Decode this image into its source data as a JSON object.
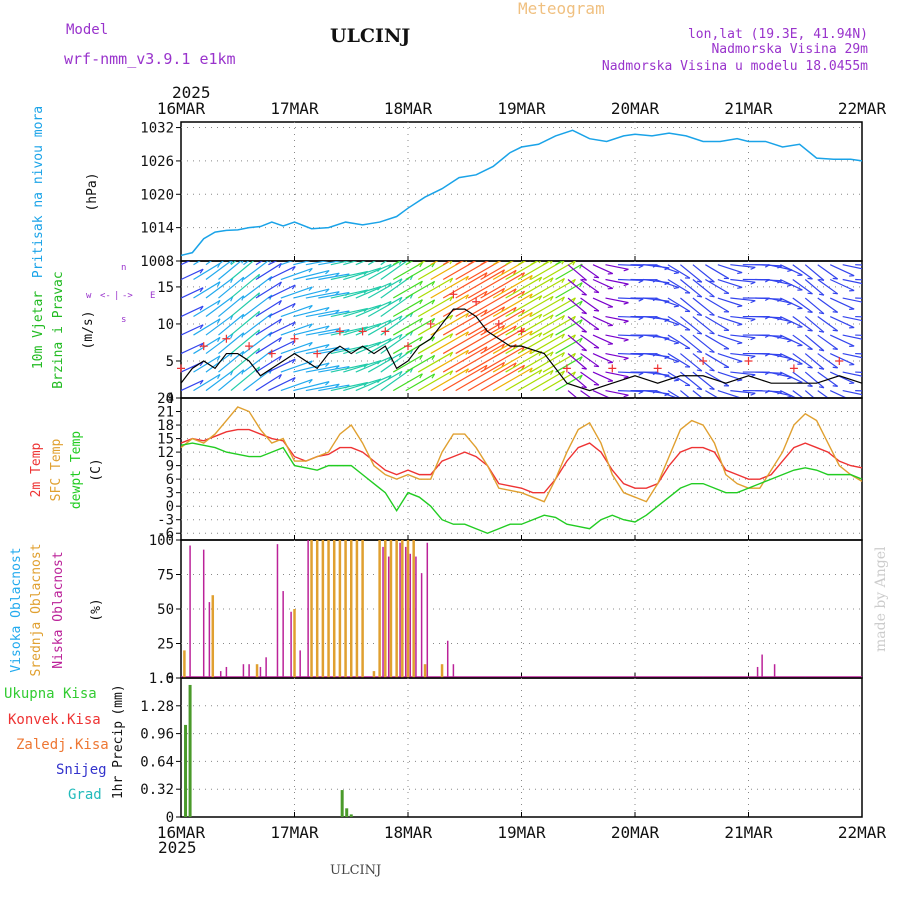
{
  "header": {
    "model_label": "Model",
    "model_name": "wrf-nmm_v3.9.1 e1km",
    "station": "ULCINJ",
    "product": "Meteogram",
    "coords": "lon,lat (19.3E, 41.94N)",
    "elevation": "Nadmorska Visina 29m",
    "model_elevation": "Nadmorska Visina u modelu 18.0455m",
    "year_top": "2025",
    "year_bottom": "2025",
    "footer_station": "ULCINJ",
    "watermark": "made by Angel"
  },
  "colors": {
    "pressure": "#1aa3e8",
    "wind_label": "#22bb22",
    "temp2m": "#ee3333",
    "sfc": "#e0a030",
    "dewpt": "#22cc22",
    "high_cloud": "#22aaee",
    "mid_cloud": "#e0a030",
    "low_cloud": "#bb2299",
    "total_precip": "#33cc33",
    "conv_precip": "#ee3333",
    "frz_precip": "#ee7733",
    "snow": "#3333cc",
    "hail": "#22bbbb",
    "title": "#9933cc",
    "meteogram": "#f0c080"
  },
  "x_axis": {
    "labels": [
      "16MAR",
      "17MAR",
      "18MAR",
      "19MAR",
      "20MAR",
      "21MAR",
      "22MAR"
    ]
  },
  "chart_data": [
    {
      "type": "line",
      "ylabel": [
        "Pritisak na nivou mora",
        "(hPa)"
      ],
      "yticks": [
        1008,
        1014,
        1020,
        1026,
        1032
      ],
      "ylim": [
        1008,
        1033
      ],
      "grid": true,
      "series": [
        {
          "name": "Pritisak na nivou mora",
          "x": [
            0,
            0.1,
            0.2,
            0.3,
            0.4,
            0.5,
            0.6,
            0.7,
            0.8,
            0.9,
            1.0,
            1.15,
            1.3,
            1.45,
            1.6,
            1.75,
            1.9,
            2.0,
            2.15,
            2.3,
            2.45,
            2.6,
            2.75,
            2.9,
            3.0,
            3.15,
            3.3,
            3.45,
            3.6,
            3.75,
            3.9,
            4.0,
            4.15,
            4.3,
            4.45,
            4.6,
            4.75,
            4.9,
            5.0,
            5.15,
            5.3,
            5.45,
            5.6,
            5.75,
            5.9,
            6.0
          ],
          "values": [
            1009,
            1009.5,
            1012,
            1013.2,
            1013.5,
            1013.6,
            1014,
            1014.2,
            1015,
            1014.3,
            1015,
            1013.8,
            1014,
            1015,
            1014.5,
            1015,
            1016,
            1017.5,
            1019.5,
            1021,
            1023,
            1023.5,
            1025,
            1027.5,
            1028.5,
            1029,
            1030.5,
            1031.5,
            1030,
            1029.5,
            1030.5,
            1030.8,
            1030.5,
            1031,
            1030.5,
            1029.5,
            1029.5,
            1030,
            1029.5,
            1029.5,
            1028.5,
            1029,
            1026.5,
            1026.3,
            1026.3,
            1026
          ]
        }
      ]
    },
    {
      "type": "line",
      "ylabel": [
        "10m Vjetar",
        "Brzina i Pravac",
        "(m/s)"
      ],
      "yticks": [
        0,
        5,
        10,
        15
      ],
      "ylim": [
        0,
        18.5
      ],
      "grid": true,
      "series": [
        {
          "name": "wind_speed",
          "x": [
            0,
            0.1,
            0.2,
            0.3,
            0.4,
            0.5,
            0.6,
            0.7,
            0.8,
            0.9,
            1.0,
            1.1,
            1.2,
            1.3,
            1.4,
            1.5,
            1.6,
            1.7,
            1.8,
            1.9,
            2.0,
            2.1,
            2.2,
            2.3,
            2.4,
            2.5,
            2.6,
            2.7,
            2.8,
            2.9,
            3.0,
            3.2,
            3.4,
            3.6,
            3.8,
            4.0,
            4.2,
            4.4,
            4.6,
            4.8,
            5.0,
            5.2,
            5.4,
            5.6,
            5.8,
            6.0
          ],
          "values": [
            2,
            4,
            5,
            4,
            6,
            6,
            5,
            3,
            4,
            5,
            6,
            5,
            4,
            6,
            7,
            6,
            7,
            6,
            7,
            4,
            5,
            7,
            8,
            10,
            12,
            12,
            11,
            9,
            8,
            7,
            7,
            6,
            2,
            1,
            2,
            3,
            2,
            3,
            3,
            2,
            3,
            2,
            2,
            2,
            3,
            2
          ]
        }
      ],
      "direction_axis": [
        "w",
        "<-",
        "|",
        "->",
        "E",
        "s",
        "n"
      ]
    },
    {
      "type": "line",
      "ylabel": [
        "2m Temp",
        "SFC Temp",
        "dewpt Temp",
        "(C)"
      ],
      "yticks": [
        -6,
        -3,
        0,
        3,
        6,
        9,
        12,
        15,
        18,
        21,
        24
      ],
      "ylim": [
        -7.5,
        24
      ],
      "grid": true,
      "series": [
        {
          "name": "2m Temp",
          "x": [
            0,
            0.1,
            0.2,
            0.3,
            0.4,
            0.5,
            0.6,
            0.7,
            0.8,
            0.9,
            1.0,
            1.1,
            1.2,
            1.3,
            1.4,
            1.5,
            1.6,
            1.7,
            1.8,
            1.9,
            2.0,
            2.1,
            2.2,
            2.3,
            2.4,
            2.5,
            2.6,
            2.7,
            2.8,
            2.9,
            3.0,
            3.1,
            3.2,
            3.3,
            3.4,
            3.5,
            3.6,
            3.7,
            3.8,
            3.9,
            4.0,
            4.1,
            4.2,
            4.3,
            4.4,
            4.5,
            4.6,
            4.7,
            4.8,
            4.9,
            5.0,
            5.1,
            5.2,
            5.3,
            5.4,
            5.5,
            5.6,
            5.7,
            5.8,
            5.9,
            6.0
          ],
          "values": [
            14,
            15,
            14.5,
            15.5,
            16.5,
            17,
            17,
            16,
            15,
            14.5,
            11,
            10,
            11,
            11.5,
            13,
            13,
            12,
            10,
            8,
            7,
            8,
            7,
            7,
            10,
            11,
            12,
            11,
            9,
            5,
            4.5,
            4,
            3,
            3,
            6,
            10,
            13,
            14,
            12,
            8,
            5,
            4,
            4,
            5,
            9,
            12,
            13,
            13,
            12,
            8,
            7,
            6,
            6,
            7,
            10,
            13,
            14,
            13,
            12,
            10,
            9,
            8.5
          ]
        },
        {
          "name": "SFC Temp",
          "x": [
            0,
            0.1,
            0.2,
            0.3,
            0.4,
            0.5,
            0.6,
            0.7,
            0.8,
            0.9,
            1.0,
            1.1,
            1.2,
            1.3,
            1.4,
            1.5,
            1.6,
            1.7,
            1.8,
            1.9,
            2.0,
            2.1,
            2.2,
            2.3,
            2.4,
            2.5,
            2.6,
            2.7,
            2.8,
            2.9,
            3.0,
            3.1,
            3.2,
            3.3,
            3.4,
            3.5,
            3.6,
            3.7,
            3.8,
            3.9,
            4.0,
            4.1,
            4.2,
            4.3,
            4.4,
            4.5,
            4.6,
            4.7,
            4.8,
            4.9,
            5.0,
            5.1,
            5.2,
            5.3,
            5.4,
            5.5,
            5.6,
            5.7,
            5.8,
            5.9,
            6.0
          ],
          "values": [
            13,
            15,
            14,
            16,
            19,
            22,
            21,
            17,
            14,
            15,
            10,
            10,
            11,
            12,
            16,
            18,
            14,
            9,
            7,
            6,
            7,
            6,
            6,
            12,
            16,
            16,
            13,
            9,
            4,
            3.5,
            3,
            2,
            1,
            6,
            12,
            17,
            18.5,
            14,
            7,
            3,
            2,
            1,
            5,
            11,
            17,
            19,
            18,
            14,
            7,
            5,
            4,
            4,
            8,
            12,
            18,
            20.5,
            19,
            14,
            9,
            7,
            5.5
          ]
        },
        {
          "name": "dewpt Temp",
          "x": [
            0,
            0.1,
            0.2,
            0.3,
            0.4,
            0.5,
            0.6,
            0.7,
            0.8,
            0.9,
            1.0,
            1.1,
            1.2,
            1.3,
            1.4,
            1.5,
            1.6,
            1.7,
            1.8,
            1.9,
            2.0,
            2.1,
            2.2,
            2.3,
            2.4,
            2.5,
            2.6,
            2.7,
            2.8,
            2.9,
            3.0,
            3.1,
            3.2,
            3.3,
            3.4,
            3.5,
            3.6,
            3.7,
            3.8,
            3.9,
            4.0,
            4.1,
            4.2,
            4.3,
            4.4,
            4.5,
            4.6,
            4.7,
            4.8,
            4.9,
            5.0,
            5.1,
            5.2,
            5.3,
            5.4,
            5.5,
            5.6,
            5.7,
            5.8,
            5.9,
            6.0
          ],
          "values": [
            13.5,
            14,
            13.5,
            13,
            12,
            11.5,
            11,
            11,
            12,
            13,
            9,
            8.5,
            8,
            9,
            9,
            9,
            7,
            5,
            3,
            -1,
            3,
            2,
            0,
            -3,
            -4,
            -4,
            -5,
            -6,
            -5,
            -4,
            -4,
            -3,
            -2,
            -2.5,
            -4,
            -4.5,
            -5,
            -3,
            -2,
            -3,
            -3.5,
            -2,
            0,
            2,
            4,
            5,
            5,
            4,
            3,
            3,
            4,
            5,
            6,
            7,
            8,
            8.5,
            8,
            7,
            7,
            7,
            6
          ]
        }
      ]
    },
    {
      "type": "bar",
      "ylabel": [
        "Visoka Oblacnost",
        "Srednja Oblacnost",
        "Niska Oblacnost",
        "(%)"
      ],
      "yticks": [
        0,
        25,
        50,
        75,
        100
      ],
      "ylim": [
        0,
        100
      ],
      "grid": true,
      "series": [
        {
          "name": "Visoka Oblacnost",
          "x": [
            1.6,
            1.8,
            2.0,
            2.3,
            4.6,
            5.5
          ],
          "values": [
            1,
            1,
            1,
            1,
            0.5,
            0.5
          ]
        },
        {
          "name": "Srednja Oblacnost",
          "x": [
            0.03,
            0.28,
            0.67,
            1.0,
            1.15,
            1.2,
            1.25,
            1.3,
            1.35,
            1.4,
            1.45,
            1.5,
            1.55,
            1.6,
            1.7,
            1.75,
            1.8,
            1.85,
            1.9,
            1.95,
            2.0,
            2.05,
            2.15,
            2.3
          ],
          "values": [
            20,
            60,
            10,
            50,
            100,
            100,
            100,
            100,
            100,
            100,
            100,
            100,
            100,
            100,
            5,
            100,
            100,
            100,
            100,
            100,
            100,
            100,
            10,
            10
          ]
        },
        {
          "name": "Niska Oblacnost",
          "x": [
            0.08,
            0.2,
            0.25,
            0.35,
            0.4,
            0.55,
            0.6,
            0.7,
            0.75,
            0.85,
            0.9,
            0.97,
            1.05,
            1.12,
            1.78,
            1.83,
            1.93,
            1.98,
            2.02,
            2.07,
            2.12,
            2.17,
            2.35,
            2.4,
            5.08,
            5.12,
            5.23
          ],
          "values": [
            96,
            93,
            55,
            5,
            8,
            10,
            10,
            8,
            15,
            97,
            63,
            48,
            20,
            100,
            95,
            88,
            98,
            95,
            90,
            88,
            76,
            98,
            27,
            10,
            8,
            17,
            10
          ]
        }
      ]
    },
    {
      "type": "bar",
      "ylabel": [
        "1hr Precip",
        "(mm)"
      ],
      "legend": [
        "Ukupna Kisa",
        "Konvek.Kisa",
        "Zaledj.Kisa",
        "Snijeg",
        "Grad"
      ],
      "yticks": [
        0,
        0.32,
        0.64,
        0.96,
        1.28,
        1.6
      ],
      "ylim": [
        0,
        1.6
      ],
      "grid": true,
      "series": [
        {
          "name": "Ukupna Kisa",
          "x": [
            0.04,
            0.08,
            1.42,
            1.46,
            1.5
          ],
          "values": [
            1.06,
            1.52,
            0.31,
            0.1,
            0.03
          ]
        }
      ]
    }
  ]
}
